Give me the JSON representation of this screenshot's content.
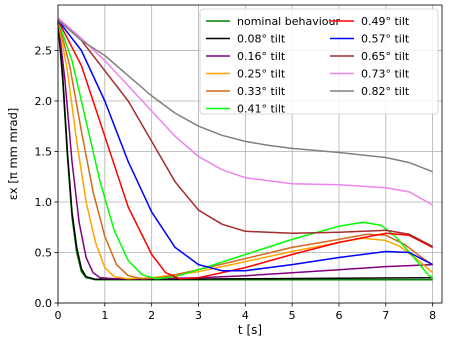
{
  "chart_data": {
    "type": "line",
    "xlabel": "t [s]",
    "ylabel": "εx [π mm mrad]",
    "xlim": [
      0,
      8.2
    ],
    "ylim": [
      0,
      2.95
    ],
    "xticks": [
      0,
      1,
      2,
      3,
      4,
      5,
      6,
      7,
      8
    ],
    "yticks": [
      0.0,
      0.5,
      1.0,
      1.5,
      2.0,
      2.5
    ],
    "ytick_labels": [
      "0.0",
      "0.5",
      "1.0",
      "1.5",
      "2.0",
      "2.5"
    ],
    "grid": true,
    "legend": {
      "position": "top-right",
      "columns": 2
    },
    "series": [
      {
        "name": "nominal behaviour",
        "color": "#008000",
        "points": [
          [
            0,
            2.78
          ],
          [
            0.1,
            2.2
          ],
          [
            0.2,
            1.45
          ],
          [
            0.3,
            0.85
          ],
          [
            0.4,
            0.5
          ],
          [
            0.5,
            0.31
          ],
          [
            0.6,
            0.25
          ],
          [
            0.8,
            0.23
          ],
          [
            2,
            0.23
          ],
          [
            4,
            0.23
          ],
          [
            6,
            0.23
          ],
          [
            8,
            0.23
          ]
        ]
      },
      {
        "name": "0.08° tilt",
        "color": "#000000",
        "points": [
          [
            0,
            2.78
          ],
          [
            0.1,
            2.25
          ],
          [
            0.2,
            1.5
          ],
          [
            0.3,
            0.9
          ],
          [
            0.4,
            0.55
          ],
          [
            0.5,
            0.34
          ],
          [
            0.6,
            0.26
          ],
          [
            0.8,
            0.235
          ],
          [
            2,
            0.235
          ],
          [
            4,
            0.24
          ],
          [
            6,
            0.245
          ],
          [
            8,
            0.25
          ]
        ]
      },
      {
        "name": "0.16° tilt",
        "color": "#800080",
        "points": [
          [
            0,
            2.8
          ],
          [
            0.15,
            2.2
          ],
          [
            0.3,
            1.4
          ],
          [
            0.45,
            0.8
          ],
          [
            0.6,
            0.45
          ],
          [
            0.75,
            0.3
          ],
          [
            0.9,
            0.25
          ],
          [
            1.2,
            0.24
          ],
          [
            2,
            0.24
          ],
          [
            3,
            0.25
          ],
          [
            4,
            0.27
          ],
          [
            5,
            0.3
          ],
          [
            6,
            0.33
          ],
          [
            7,
            0.36
          ],
          [
            8,
            0.38
          ]
        ]
      },
      {
        "name": "0.25° tilt",
        "color": "#ffa500",
        "points": [
          [
            0,
            2.8
          ],
          [
            0.2,
            2.3
          ],
          [
            0.4,
            1.6
          ],
          [
            0.6,
            1.0
          ],
          [
            0.8,
            0.6
          ],
          [
            1.0,
            0.35
          ],
          [
            1.2,
            0.26
          ],
          [
            1.5,
            0.24
          ],
          [
            2,
            0.25
          ],
          [
            3,
            0.31
          ],
          [
            4,
            0.41
          ],
          [
            5,
            0.51
          ],
          [
            6,
            0.6
          ],
          [
            6.5,
            0.64
          ],
          [
            7,
            0.62
          ],
          [
            7.3,
            0.56
          ],
          [
            7.7,
            0.42
          ],
          [
            8,
            0.3
          ]
        ]
      },
      {
        "name": "0.33° tilt",
        "color": "#d2691e",
        "points": [
          [
            0,
            2.8
          ],
          [
            0.25,
            2.35
          ],
          [
            0.5,
            1.7
          ],
          [
            0.75,
            1.1
          ],
          [
            1.0,
            0.66
          ],
          [
            1.25,
            0.38
          ],
          [
            1.5,
            0.27
          ],
          [
            1.8,
            0.24
          ],
          [
            2.2,
            0.25
          ],
          [
            3,
            0.33
          ],
          [
            4,
            0.44
          ],
          [
            5,
            0.55
          ],
          [
            6,
            0.63
          ],
          [
            6.6,
            0.68
          ],
          [
            7,
            0.67
          ],
          [
            7.4,
            0.58
          ],
          [
            7.8,
            0.44
          ],
          [
            8,
            0.38
          ]
        ]
      },
      {
        "name": "0.41° tilt",
        "color": "#00ff00",
        "points": [
          [
            0,
            2.8
          ],
          [
            0.3,
            2.4
          ],
          [
            0.6,
            1.8
          ],
          [
            0.9,
            1.2
          ],
          [
            1.2,
            0.72
          ],
          [
            1.5,
            0.42
          ],
          [
            1.8,
            0.28
          ],
          [
            2.1,
            0.24
          ],
          [
            2.5,
            0.26
          ],
          [
            3,
            0.33
          ],
          [
            4,
            0.48
          ],
          [
            5,
            0.63
          ],
          [
            6,
            0.76
          ],
          [
            6.5,
            0.8
          ],
          [
            6.9,
            0.77
          ],
          [
            7.2,
            0.66
          ],
          [
            7.6,
            0.45
          ],
          [
            7.9,
            0.28
          ],
          [
            8,
            0.25
          ]
        ]
      },
      {
        "name": "0.49° tilt",
        "color": "#ff0000",
        "points": [
          [
            0,
            2.8
          ],
          [
            0.5,
            2.35
          ],
          [
            1.0,
            1.65
          ],
          [
            1.5,
            0.95
          ],
          [
            2.0,
            0.48
          ],
          [
            2.3,
            0.3
          ],
          [
            2.6,
            0.24
          ],
          [
            3,
            0.25
          ],
          [
            4,
            0.35
          ],
          [
            5,
            0.48
          ],
          [
            6,
            0.6
          ],
          [
            7,
            0.69
          ],
          [
            7.5,
            0.67
          ],
          [
            8,
            0.55
          ]
        ]
      },
      {
        "name": "0.57° tilt",
        "color": "#0000ff",
        "points": [
          [
            0,
            2.8
          ],
          [
            0.5,
            2.5
          ],
          [
            1.0,
            2.0
          ],
          [
            1.5,
            1.4
          ],
          [
            2.0,
            0.9
          ],
          [
            2.5,
            0.55
          ],
          [
            3,
            0.38
          ],
          [
            3.5,
            0.32
          ],
          [
            4,
            0.32
          ],
          [
            5,
            0.38
          ],
          [
            6,
            0.45
          ],
          [
            7,
            0.51
          ],
          [
            7.5,
            0.5
          ],
          [
            8,
            0.38
          ]
        ]
      },
      {
        "name": "0.65° tilt",
        "color": "#a52a2a",
        "points": [
          [
            0,
            2.82
          ],
          [
            0.5,
            2.6
          ],
          [
            1.0,
            2.3
          ],
          [
            1.5,
            2.0
          ],
          [
            2.0,
            1.6
          ],
          [
            2.5,
            1.2
          ],
          [
            3,
            0.92
          ],
          [
            3.5,
            0.78
          ],
          [
            4,
            0.71
          ],
          [
            5,
            0.69
          ],
          [
            6,
            0.7
          ],
          [
            7,
            0.72
          ],
          [
            7.5,
            0.68
          ],
          [
            8,
            0.56
          ]
        ]
      },
      {
        "name": "0.73° tilt",
        "color": "#ee82ee",
        "points": [
          [
            0,
            2.82
          ],
          [
            0.5,
            2.62
          ],
          [
            1.0,
            2.4
          ],
          [
            1.5,
            2.15
          ],
          [
            2.0,
            1.9
          ],
          [
            2.5,
            1.65
          ],
          [
            3,
            1.45
          ],
          [
            3.5,
            1.32
          ],
          [
            4,
            1.24
          ],
          [
            5,
            1.18
          ],
          [
            6,
            1.17
          ],
          [
            7,
            1.14
          ],
          [
            7.5,
            1.1
          ],
          [
            8,
            0.97
          ]
        ]
      },
      {
        "name": "0.82° tilt",
        "color": "#808080",
        "points": [
          [
            0,
            2.8
          ],
          [
            0.5,
            2.6
          ],
          [
            1.0,
            2.45
          ],
          [
            1.5,
            2.25
          ],
          [
            2.0,
            2.05
          ],
          [
            2.5,
            1.88
          ],
          [
            3,
            1.75
          ],
          [
            3.5,
            1.66
          ],
          [
            4,
            1.6
          ],
          [
            4.5,
            1.56
          ],
          [
            5,
            1.53
          ],
          [
            6,
            1.49
          ],
          [
            7,
            1.44
          ],
          [
            7.5,
            1.39
          ],
          [
            8,
            1.3
          ]
        ]
      }
    ]
  }
}
